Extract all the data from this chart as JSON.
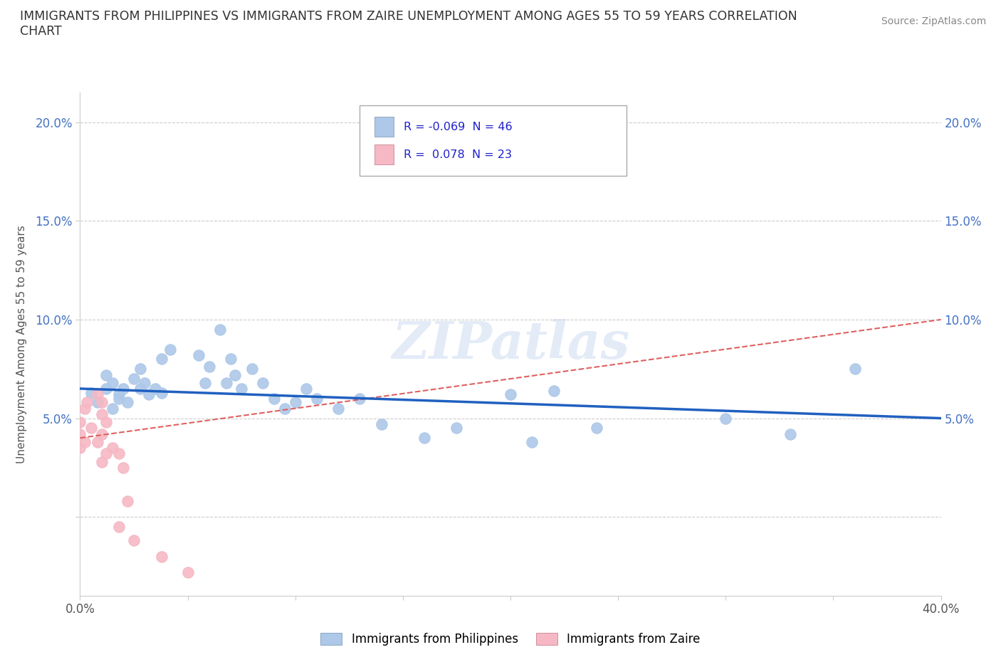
{
  "title": "IMMIGRANTS FROM PHILIPPINES VS IMMIGRANTS FROM ZAIRE UNEMPLOYMENT AMONG AGES 55 TO 59 YEARS CORRELATION\nCHART",
  "source_text": "Source: ZipAtlas.com",
  "ylabel": "Unemployment Among Ages 55 to 59 years",
  "xlim": [
    0.0,
    0.4
  ],
  "ylim": [
    -0.04,
    0.215
  ],
  "xtick_vals": [
    0.0,
    0.05,
    0.1,
    0.15,
    0.2,
    0.25,
    0.3,
    0.35,
    0.4
  ],
  "ytick_vals": [
    0.0,
    0.05,
    0.1,
    0.15,
    0.2
  ],
  "xtick_labels": [
    "0.0%",
    "",
    "",
    "",
    "",
    "",
    "",
    "",
    "40.0%"
  ],
  "ytick_labels": [
    "",
    "5.0%",
    "10.0%",
    "15.0%",
    "20.0%"
  ],
  "grid_color": "#cccccc",
  "background_color": "#ffffff",
  "philippines_color": "#adc8e8",
  "zaire_color": "#f5b8c4",
  "philippines_line_color": "#2060c0",
  "zaire_line_color": "#e06060",
  "watermark_text": "ZIPatlas",
  "legend_R_philippines": "-0.069",
  "legend_N_philippines": "46",
  "legend_R_zaire": "0.078",
  "legend_N_zaire": "23",
  "phil_x": [
    0.005,
    0.008,
    0.012,
    0.015,
    0.018,
    0.02,
    0.022,
    0.018,
    0.015,
    0.012,
    0.025,
    0.028,
    0.03,
    0.032,
    0.028,
    0.035,
    0.038,
    0.042,
    0.038,
    0.055,
    0.058,
    0.06,
    0.065,
    0.068,
    0.07,
    0.072,
    0.075,
    0.08,
    0.085,
    0.09,
    0.095,
    0.1,
    0.105,
    0.11,
    0.12,
    0.13,
    0.14,
    0.16,
    0.175,
    0.2,
    0.21,
    0.22,
    0.24,
    0.3,
    0.33,
    0.36
  ],
  "phil_y": [
    0.063,
    0.058,
    0.065,
    0.055,
    0.06,
    0.065,
    0.058,
    0.062,
    0.068,
    0.072,
    0.07,
    0.065,
    0.068,
    0.062,
    0.075,
    0.065,
    0.08,
    0.085,
    0.063,
    0.082,
    0.068,
    0.076,
    0.095,
    0.068,
    0.08,
    0.072,
    0.065,
    0.075,
    0.068,
    0.06,
    0.055,
    0.058,
    0.065,
    0.06,
    0.055,
    0.06,
    0.047,
    0.04,
    0.045,
    0.062,
    0.038,
    0.064,
    0.045,
    0.05,
    0.042,
    0.075
  ],
  "zaire_x": [
    0.0,
    0.002,
    0.003,
    0.005,
    0.0,
    0.002,
    0.0,
    0.008,
    0.01,
    0.01,
    0.012,
    0.01,
    0.008,
    0.012,
    0.01,
    0.015,
    0.018,
    0.02,
    0.022,
    0.018,
    0.025,
    0.038,
    0.05
  ],
  "zaire_y": [
    0.048,
    0.055,
    0.058,
    0.045,
    0.042,
    0.038,
    0.035,
    0.062,
    0.058,
    0.052,
    0.048,
    0.042,
    0.038,
    0.032,
    0.028,
    0.035,
    0.032,
    0.025,
    0.008,
    -0.005,
    -0.012,
    -0.02,
    -0.028
  ]
}
